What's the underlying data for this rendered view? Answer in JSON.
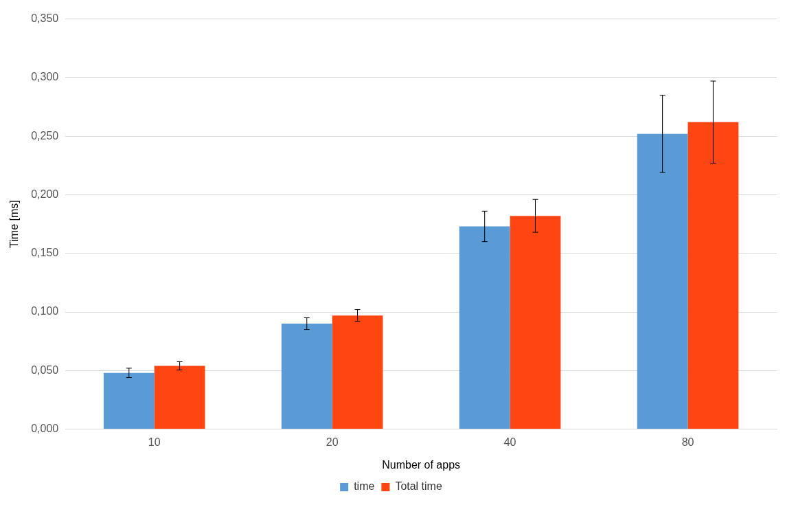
{
  "chart_data": {
    "type": "bar",
    "xlabel": "Number of apps",
    "ylabel": "Time [ms]",
    "categories": [
      "10",
      "20",
      "40",
      "80"
    ],
    "series": [
      {
        "name": "time",
        "color": "#5b9bd5",
        "values": [
          0.048,
          0.09,
          0.173,
          0.252
        ],
        "errors": [
          0.004,
          0.005,
          0.013,
          0.033
        ]
      },
      {
        "name": "Total time",
        "color": "#ff4512",
        "values": [
          0.054,
          0.097,
          0.182,
          0.262
        ],
        "errors": [
          0.0035,
          0.005,
          0.014,
          0.035
        ]
      }
    ],
    "ylim": [
      0,
      0.35
    ],
    "yticks": [
      {
        "value": 0,
        "label": "0,000"
      },
      {
        "value": 0.05,
        "label": "0,050"
      },
      {
        "value": 0.1,
        "label": "0,100"
      },
      {
        "value": 0.15,
        "label": "0,150"
      },
      {
        "value": 0.2,
        "label": "0,200"
      },
      {
        "value": 0.25,
        "label": "0,250"
      },
      {
        "value": 0.3,
        "label": "0,300"
      },
      {
        "value": 0.35,
        "label": "0,350"
      }
    ],
    "grid": "y",
    "legend": "bottom"
  }
}
